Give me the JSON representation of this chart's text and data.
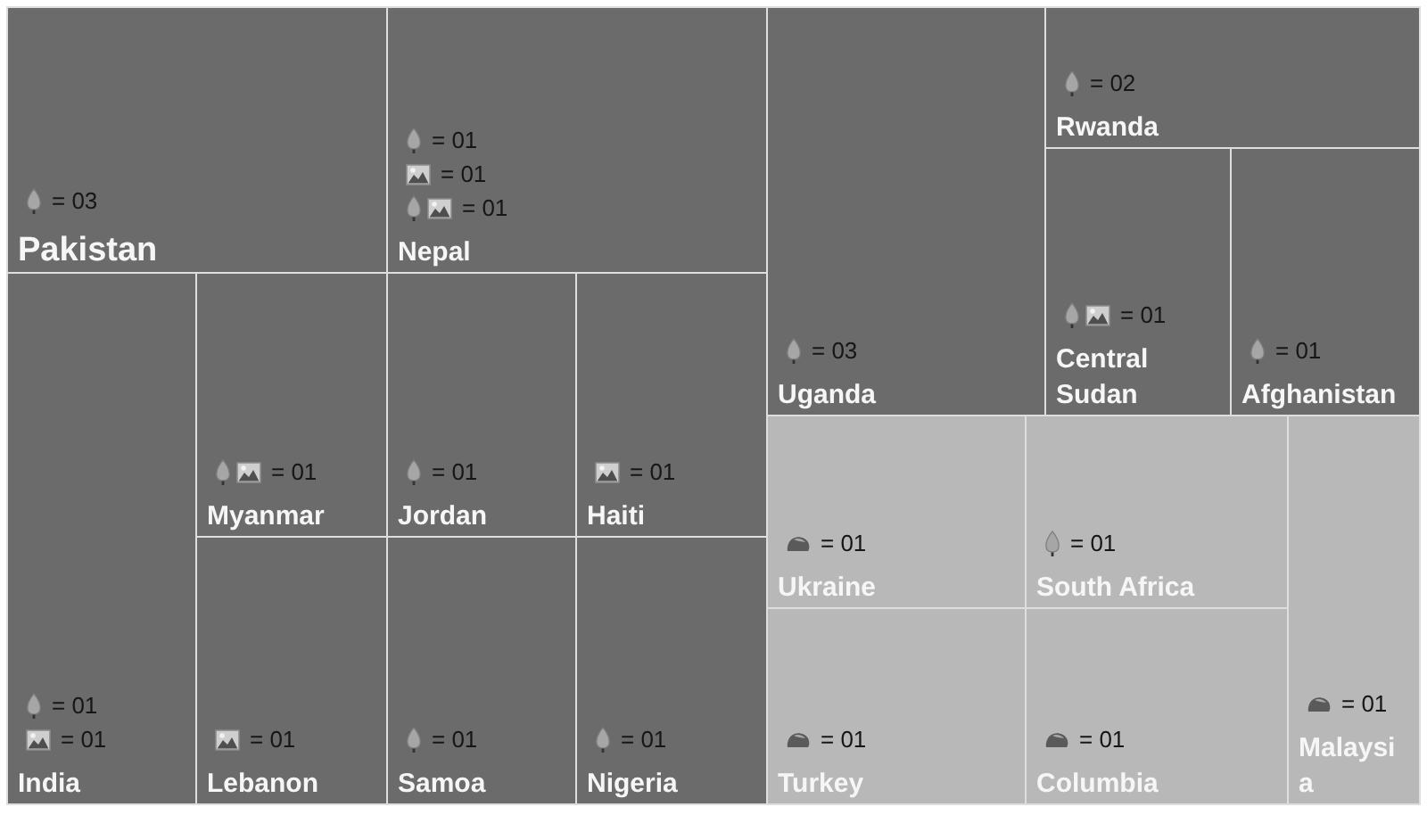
{
  "chart_data": {
    "type": "other",
    "categories": [
      "Pakistan",
      "Nepal",
      "India",
      "Myanmar",
      "Jordan",
      "Haiti",
      "Lebanon",
      "Samoa",
      "Nigeria",
      "Uganda",
      "Rwanda",
      "Central Sudan",
      "Afghanistan",
      "Ukraine",
      "South Africa",
      "Turkey",
      "Columbia",
      "Malaysia"
    ],
    "series": [
      {
        "colors": [
          "#6b6b6b",
          "#6b6b6b",
          "#6b6b6b",
          null,
          "#6b6b6b",
          null,
          null,
          "#6b6b6b",
          "#6b6b6b",
          "#6b6b6b",
          "#6b6b6b",
          null,
          "#6b6b6b",
          null,
          "#b8b8b8",
          null,
          null,
          null
        ],
        "values": [
          3,
          1,
          1,
          null,
          1,
          null,
          null,
          1,
          1,
          3,
          2,
          null,
          1,
          null,
          1,
          null,
          null,
          null
        ],
        "value_labels": [
          "= 03",
          "= 01",
          "= 01",
          null,
          "= 01",
          null,
          null,
          "= 01",
          "= 01",
          "= 03",
          "= 02",
          null,
          "= 01",
          null,
          "= 01",
          null,
          null,
          null
        ]
      },
      {
        "colors": [
          null,
          "#6b6b6b",
          "#6b6b6b",
          null,
          null,
          "#6b6b6b",
          "#6b6b6b",
          null,
          null,
          null,
          null,
          null,
          null,
          null,
          null,
          null,
          null,
          null
        ],
        "values": [
          null,
          1,
          1,
          null,
          null,
          1,
          1,
          null,
          null,
          null,
          null,
          null,
          null,
          null,
          null,
          null,
          null,
          null
        ],
        "value_labels": [
          null,
          "= 01",
          "= 01",
          null,
          null,
          "= 01",
          "= 01",
          null,
          null,
          null,
          null,
          null,
          null,
          null,
          null,
          null,
          null,
          null
        ]
      },
      {
        "colors": [
          null,
          "#6b6b6b",
          null,
          "#6b6b6b",
          null,
          null,
          null,
          null,
          null,
          null,
          null,
          "#6b6b6b",
          null,
          null,
          null,
          null,
          null,
          null
        ],
        "values": [
          null,
          1,
          null,
          1,
          null,
          null,
          null,
          null,
          null,
          null,
          null,
          1,
          null,
          null,
          null,
          null,
          null,
          null
        ],
        "value_labels": [
          null,
          "= 01",
          null,
          "= 01",
          null,
          null,
          null,
          null,
          null,
          null,
          null,
          "= 01",
          null,
          null,
          null,
          null,
          null,
          null
        ]
      },
      {
        "colors": [
          null,
          null,
          null,
          null,
          null,
          null,
          null,
          null,
          null,
          null,
          null,
          null,
          null,
          "#b8b8b8",
          null,
          "#b8b8b8",
          "#b8b8b8",
          "#b8b8b8"
        ],
        "values": [
          null,
          null,
          null,
          null,
          null,
          null,
          null,
          null,
          null,
          null,
          null,
          null,
          null,
          1,
          null,
          1,
          1,
          1
        ],
        "value_labels": [
          null,
          null,
          null,
          null,
          null,
          null,
          null,
          null,
          null,
          null,
          null,
          null,
          null,
          "= 01",
          null,
          "= 01",
          "= 01",
          "= 01"
        ]
      }
    ]
  }
}
